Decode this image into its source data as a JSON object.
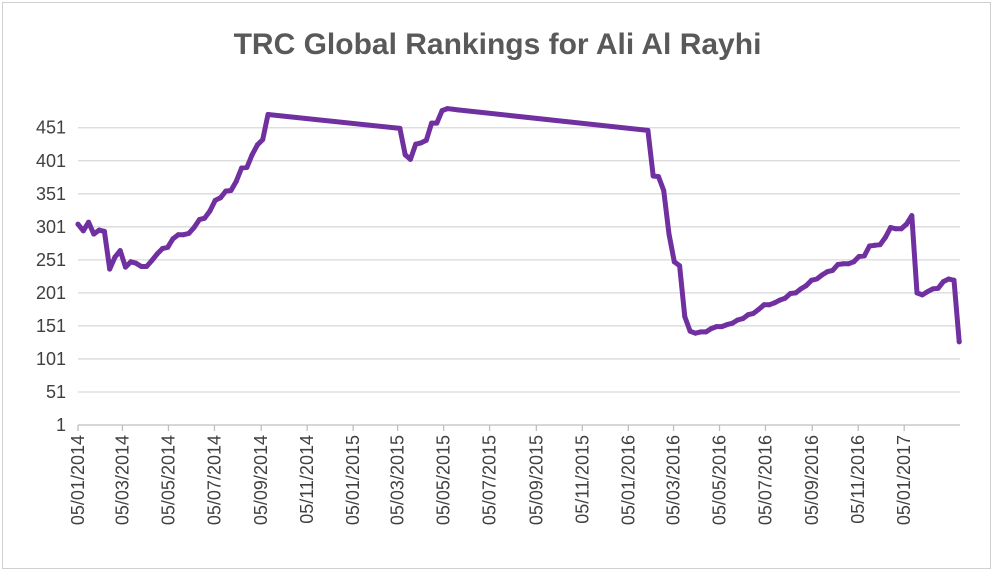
{
  "chart_data": {
    "type": "line",
    "title": "TRC Global Rankings for Ali Al Rayhi",
    "xlabel": "",
    "ylabel": "",
    "ylim": [
      1,
      496
    ],
    "y_ticks": [
      "1",
      "51",
      "101",
      "151",
      "201",
      "251",
      "301",
      "351",
      "401",
      "451"
    ],
    "x_tick_labels": [
      "05/01/2014",
      "05/03/2014",
      "05/05/2014",
      "05/07/2014",
      "05/09/2014",
      "05/11/2014",
      "05/01/2015",
      "05/03/2015",
      "05/05/2015",
      "05/07/2015",
      "05/09/2015",
      "05/11/2015",
      "05/01/2016",
      "05/03/2016",
      "05/05/2016",
      "05/07/2016",
      "05/09/2016",
      "05/11/2016",
      "05/01/2017"
    ],
    "x_range": [
      "2014-01-05",
      "2017-03-20"
    ],
    "grid": "horizontal",
    "legend": "none",
    "line_color": "#7030a0",
    "series": [
      {
        "x": [
          "2014-01-05",
          "2014-01-12",
          "2014-01-19",
          "2014-01-26",
          "2014-02-02",
          "2014-02-09",
          "2014-02-16",
          "2014-02-23",
          "2014-03-02",
          "2014-03-09",
          "2014-03-16",
          "2014-03-23",
          "2014-03-30",
          "2014-04-06",
          "2014-04-13",
          "2014-04-20",
          "2014-04-27",
          "2014-05-04",
          "2014-05-11",
          "2014-05-18",
          "2014-05-25",
          "2014-06-01",
          "2014-06-08",
          "2014-06-15",
          "2014-06-22",
          "2014-06-29",
          "2014-07-06",
          "2014-07-13",
          "2014-07-20",
          "2014-07-27",
          "2014-08-03",
          "2014-08-10",
          "2014-08-17",
          "2014-08-24",
          "2014-08-31",
          "2014-09-07",
          "2014-09-14",
          "2015-03-08",
          "2015-03-15",
          "2015-03-22",
          "2015-03-29",
          "2015-04-05",
          "2015-04-12",
          "2015-04-19",
          "2015-04-26",
          "2015-05-03",
          "2015-05-10",
          "2015-05-17",
          "2015-05-24",
          "2016-01-31",
          "2016-02-07",
          "2016-02-14",
          "2016-02-21",
          "2016-02-28",
          "2016-03-06",
          "2016-03-13",
          "2016-03-20",
          "2016-03-27",
          "2016-04-03",
          "2016-04-10",
          "2016-04-17",
          "2016-04-24",
          "2016-05-01",
          "2016-05-08",
          "2016-05-15",
          "2016-05-22",
          "2016-05-29",
          "2016-06-05",
          "2016-06-12",
          "2016-06-19",
          "2016-06-26",
          "2016-07-03",
          "2016-07-10",
          "2016-07-17",
          "2016-07-24",
          "2016-07-31",
          "2016-08-07",
          "2016-08-14",
          "2016-08-21",
          "2016-08-28",
          "2016-09-04",
          "2016-09-11",
          "2016-09-18",
          "2016-09-25",
          "2016-10-02",
          "2016-10-09",
          "2016-10-16",
          "2016-10-23",
          "2016-10-30",
          "2016-11-06",
          "2016-11-13",
          "2016-11-20",
          "2016-11-27",
          "2016-12-04",
          "2016-12-11",
          "2016-12-18",
          "2016-12-25",
          "2017-01-01",
          "2017-01-08",
          "2017-01-15",
          "2017-01-22",
          "2017-01-29",
          "2017-02-05",
          "2017-02-12",
          "2017-02-19",
          "2017-02-26",
          "2017-03-05",
          "2017-03-12",
          "2017-03-19"
        ],
        "values": [
          305,
          295,
          308,
          290,
          296,
          294,
          237,
          255,
          265,
          240,
          248,
          246,
          241,
          241,
          250,
          260,
          268,
          270,
          283,
          289,
          289,
          291,
          300,
          312,
          314,
          325,
          341,
          345,
          355,
          356,
          370,
          390,
          391,
          410,
          425,
          433,
          471,
          450,
          410,
          403,
          426,
          428,
          432,
          458,
          458,
          477,
          480,
          479,
          478,
          447,
          378,
          377,
          356,
          290,
          248,
          242,
          165,
          143,
          140,
          142,
          142,
          147,
          150,
          150,
          153,
          155,
          160,
          162,
          168,
          170,
          176,
          183,
          183,
          186,
          190,
          193,
          200,
          201,
          207,
          212,
          220,
          222,
          228,
          233,
          235,
          244,
          245,
          245,
          248,
          256,
          257,
          272,
          273,
          274,
          285,
          300,
          298,
          298,
          305,
          318,
          201,
          198,
          203,
          207,
          208,
          218,
          222,
          220,
          127
        ]
      }
    ]
  }
}
